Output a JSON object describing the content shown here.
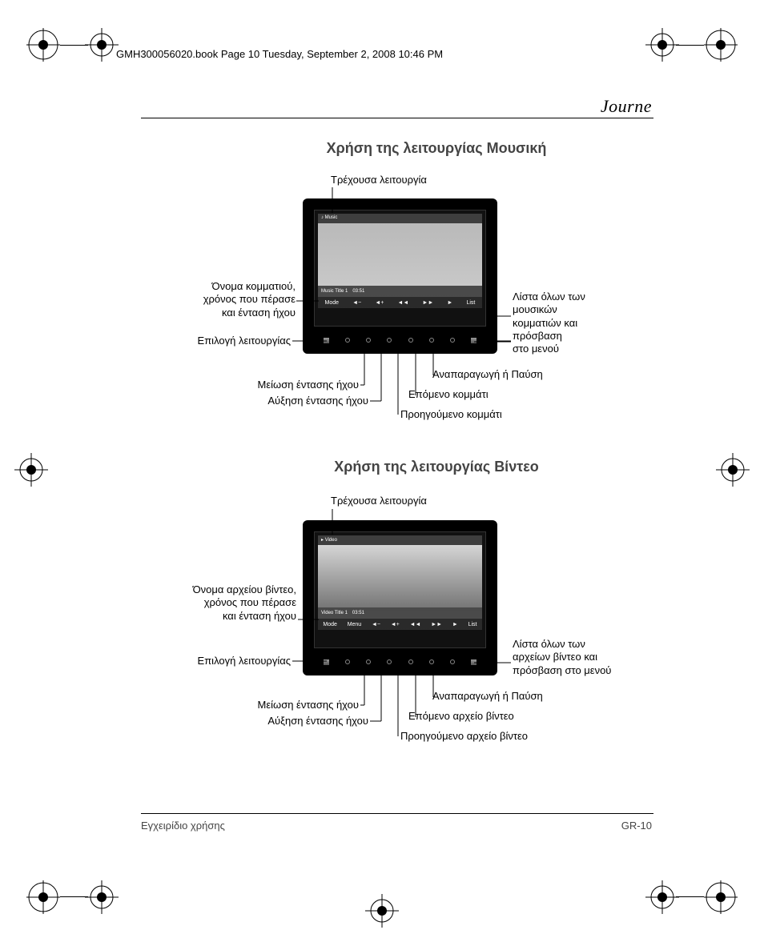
{
  "header": "GMH300056020.book  Page 10  Tuesday, September 2, 2008  10:46 PM",
  "brand": "Journe",
  "section_music": {
    "title": "Χρήση της λειτουργίας Μουσική",
    "labels": {
      "current_mode": "Τρέχουσα λειτουργία",
      "track_name": "Όνομα κομματιού,\nχρόνος που πέρασε\nκαι ένταση ήχου",
      "mode_select": "Επιλογή λειτουργίας",
      "vol_down": "Μείωση έντασης ήχου",
      "vol_up": "Αύξηση έντασης ήχου",
      "prev": "Προηγούμενο κομμάτι",
      "next": "Επόμενο κομμάτι",
      "playpause": "Αναπαραγωγή ή Παύση",
      "list": "Λίστα όλων των\nμουσικών\nκομματιών και\nπρόσβαση\nστο μενού"
    },
    "screen": {
      "top_label": "Music",
      "track": "Music Title 1",
      "time": "03:51",
      "ctrl_left": "Mode",
      "ctrl_right": "List"
    }
  },
  "section_video": {
    "title": "Χρήση της λειτουργίας Βίντεο",
    "labels": {
      "current_mode": "Τρέχουσα λειτουργία",
      "file_name": "Όνομα αρχείου βίντεο,\nχρόνος που πέρασε\nκαι ένταση ήχου",
      "mode_select": "Επιλογή λειτουργίας",
      "vol_down": "Μείωση έντασης ήχου",
      "vol_up": "Αύξηση έντασης ήχου",
      "prev": "Προηγούμενο αρχείο βίντεο",
      "next": "Επόμενο αρχείο βίντεο",
      "playpause": "Αναπαραγωγή ή Παύση",
      "list": "Λίστα όλων των\nαρχείων βίντεο και\nπρόσβαση στο μενού"
    },
    "screen": {
      "top_label": "Video",
      "track": "Video Title 1",
      "time": "03:51",
      "ctrl_left": "Mode",
      "ctrl_menu": "Menu",
      "ctrl_right": "List"
    }
  },
  "footer": {
    "left": "Εγχειρίδιο χρήσης",
    "right": "GR-10"
  },
  "colors": {
    "text": "#000000",
    "heading": "#444444",
    "device": "#000000"
  }
}
